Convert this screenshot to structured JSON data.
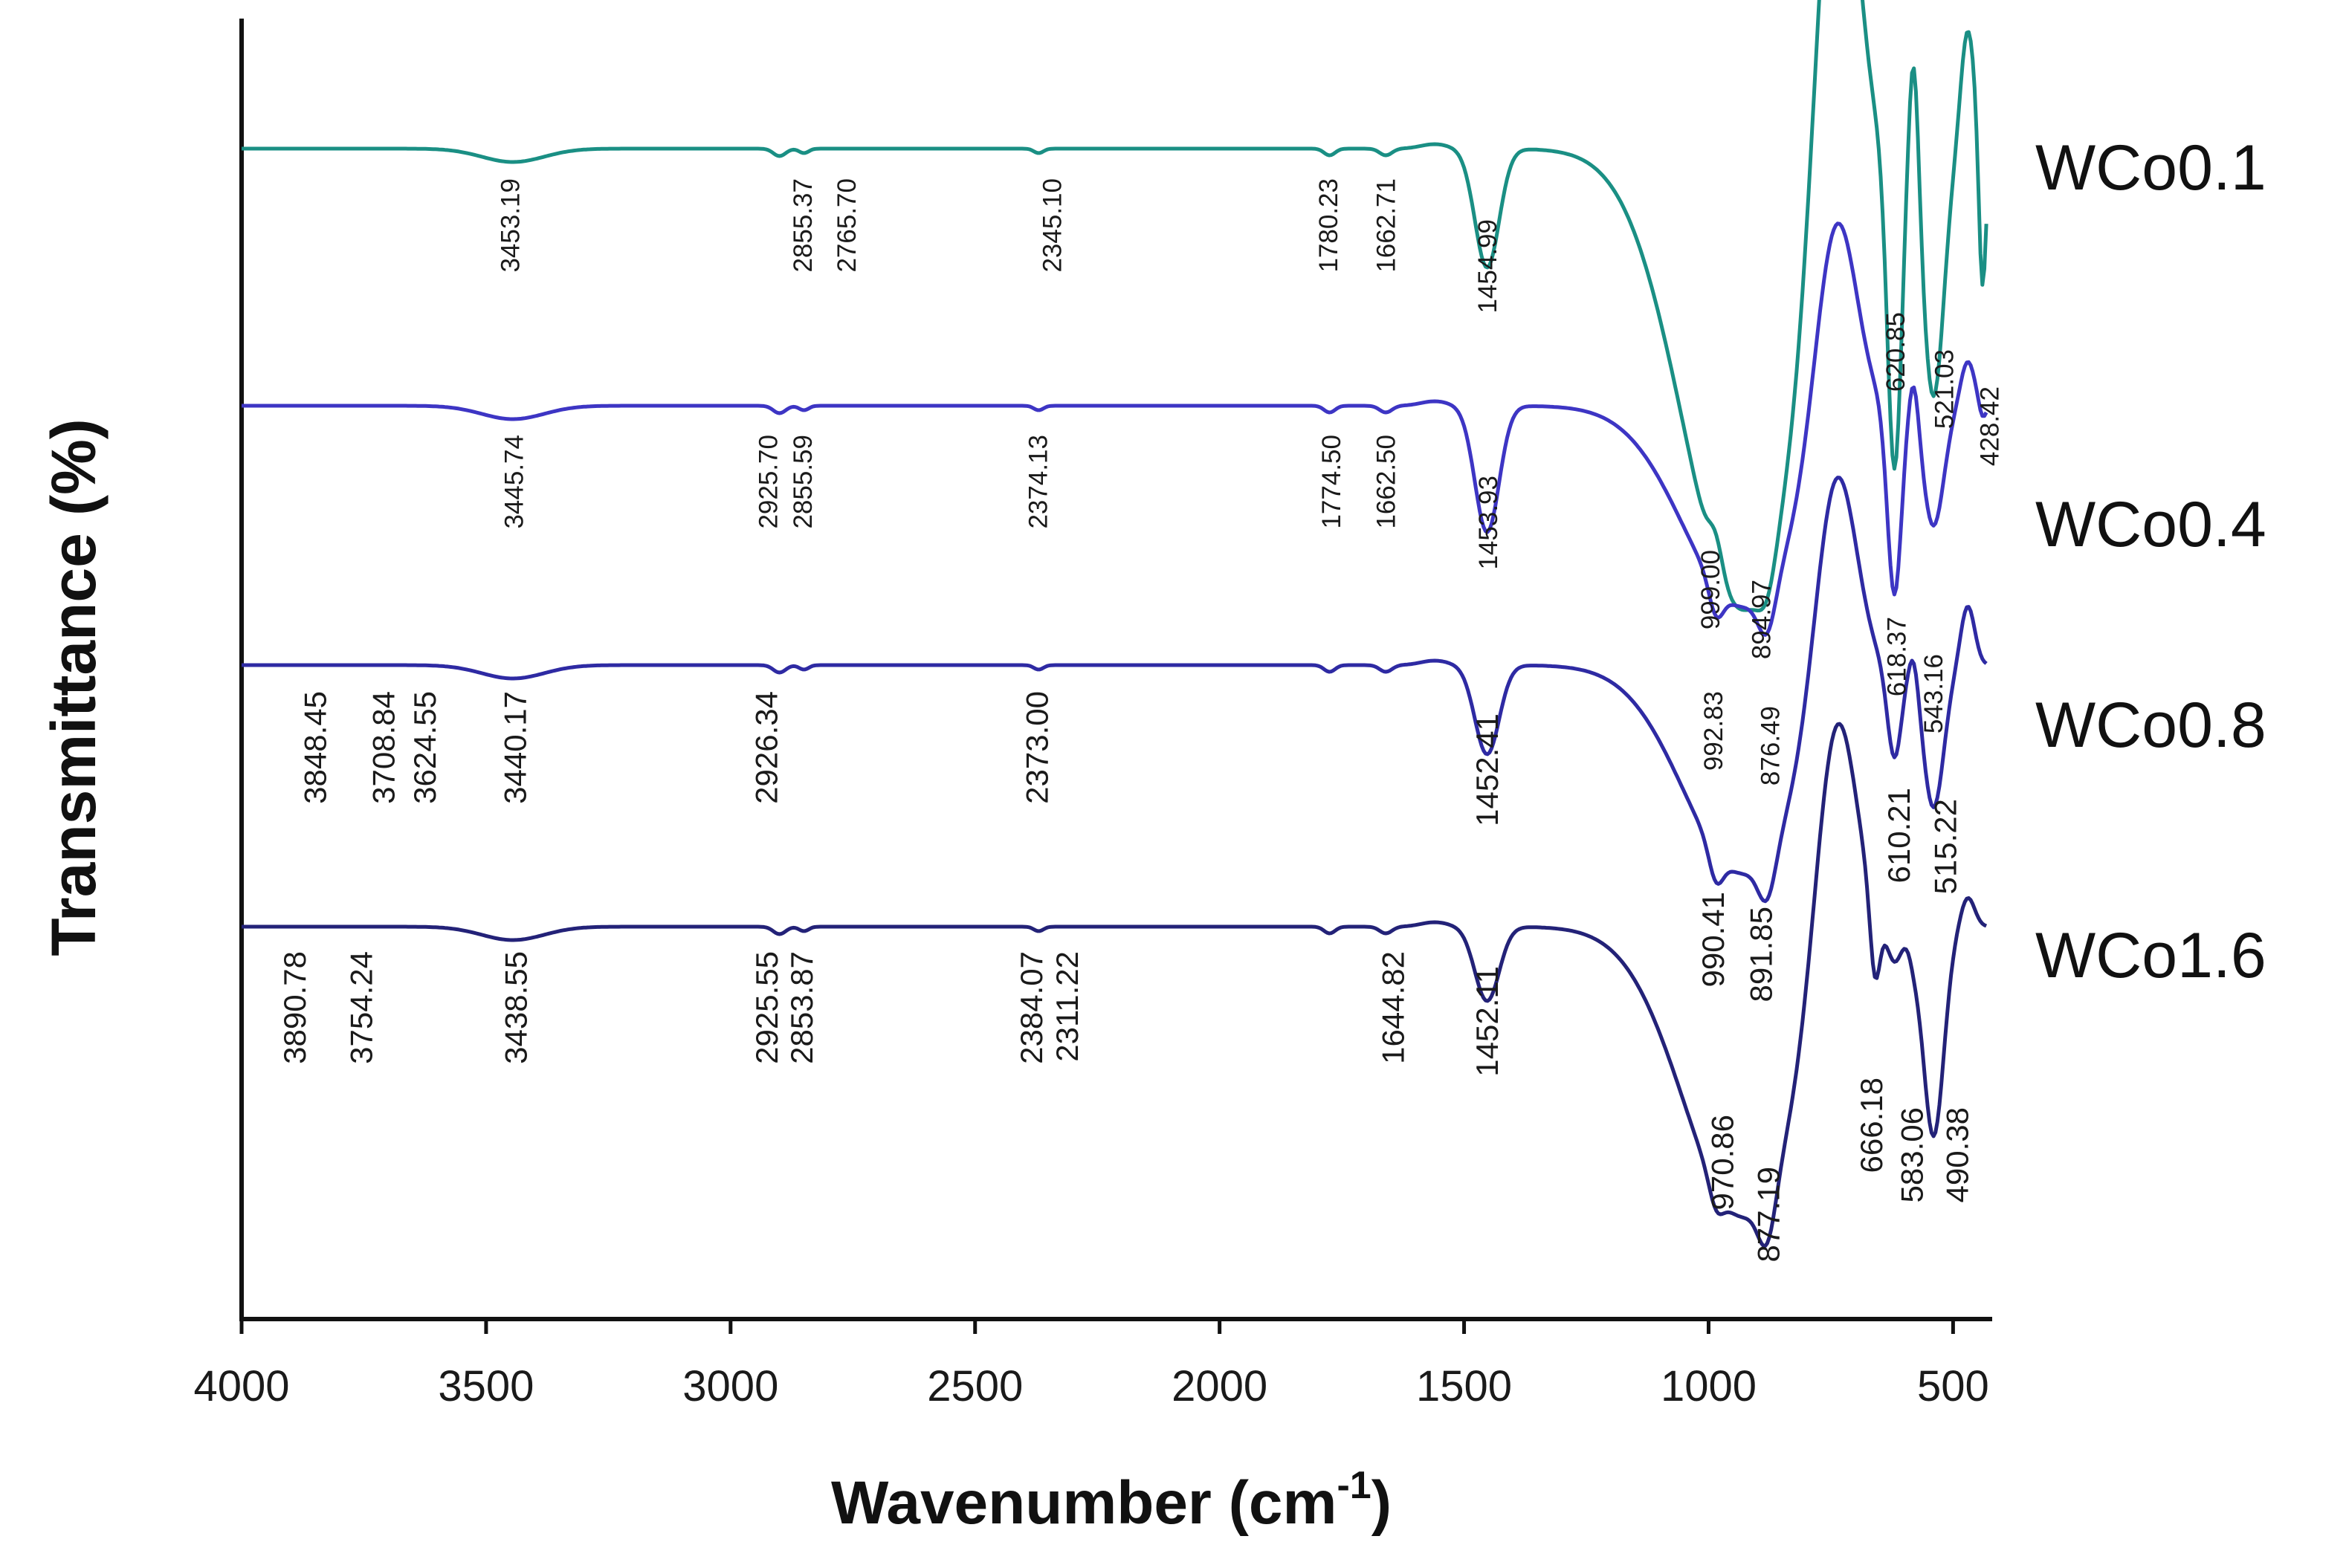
{
  "chart_data": {
    "type": "line",
    "title": "",
    "xlabel": "Wavenumber (cm",
    "xlabel_superscript": "-1",
    "xlabel_close": ")",
    "ylabel": "Transmittance (%)",
    "xlim": [
      4000,
      420
    ],
    "x_ticks": [
      "4000",
      "3500",
      "3000",
      "2500",
      "2000",
      "1500",
      "1000",
      "500"
    ],
    "x_tick_values": [
      4000,
      3500,
      3000,
      2500,
      2000,
      1500,
      1000,
      500
    ],
    "y_ticks_shown": false,
    "series": [
      {
        "name": "WCo0.1",
        "color": "#1a8f84",
        "peaks": [
          {
            "label": "3453.19",
            "x": 3453.19
          },
          {
            "label": "2855.37",
            "x": 2855.37
          },
          {
            "label": "2765.70",
            "x": 2765.7
          },
          {
            "label": "2345.10",
            "x": 2345.1
          },
          {
            "label": "1780.23",
            "x": 1780.23
          },
          {
            "label": "1662.71",
            "x": 1662.71
          },
          {
            "label": "1454.99",
            "x": 1454.99
          },
          {
            "label": "999.00",
            "x": 999.0
          },
          {
            "label": "894.97",
            "x": 894.97
          },
          {
            "label": "620.85",
            "x": 620.85
          },
          {
            "label": "521.03",
            "x": 521.03
          },
          {
            "label": "428.42",
            "x": 428.42
          }
        ]
      },
      {
        "name": "WCo0.4",
        "color": "#3d35c4",
        "peaks": [
          {
            "label": "3445.74",
            "x": 3445.74
          },
          {
            "label": "2925.70",
            "x": 2925.7
          },
          {
            "label": "2855.59",
            "x": 2855.59
          },
          {
            "label": "2374.13",
            "x": 2374.13
          },
          {
            "label": "1774.50",
            "x": 1774.5
          },
          {
            "label": "1662.50",
            "x": 1662.5
          },
          {
            "label": "1453.93",
            "x": 1453.93
          },
          {
            "label": "992.83",
            "x": 992.83
          },
          {
            "label": "876.49",
            "x": 876.49
          },
          {
            "label": "618.37",
            "x": 618.37
          },
          {
            "label": "543.16",
            "x": 543.16
          }
        ]
      },
      {
        "name": "WCo0.8",
        "color": "#2e2aa3",
        "peaks": [
          {
            "label": "3848.45",
            "x": 3848.45
          },
          {
            "label": "3708.84",
            "x": 3708.84
          },
          {
            "label": "3624.55",
            "x": 3624.55
          },
          {
            "label": "3440.17",
            "x": 3440.17
          },
          {
            "label": "2926.34",
            "x": 2926.34
          },
          {
            "label": "2373.00",
            "x": 2373.0
          },
          {
            "label": "1452.41",
            "x": 1452.41
          },
          {
            "label": "990.41",
            "x": 990.41
          },
          {
            "label": "891.85",
            "x": 891.85
          },
          {
            "label": "610.21",
            "x": 610.21
          },
          {
            "label": "515.22",
            "x": 515.22
          }
        ]
      },
      {
        "name": "WCo1.6",
        "color": "#232278",
        "peaks": [
          {
            "label": "3890.78",
            "x": 3890.78
          },
          {
            "label": "3754.24",
            "x": 3754.24
          },
          {
            "label": "3438.55",
            "x": 3438.55
          },
          {
            "label": "2925.55",
            "x": 2925.55
          },
          {
            "label": "2853.87",
            "x": 2853.87
          },
          {
            "label": "2384.07",
            "x": 2384.07
          },
          {
            "label": "2311.22",
            "x": 2311.22
          },
          {
            "label": "1644.82",
            "x": 1644.82
          },
          {
            "label": "1452.11",
            "x": 1452.11
          },
          {
            "label": "970.86",
            "x": 970.86
          },
          {
            "label": "877.19",
            "x": 877.19
          },
          {
            "label": "666.18",
            "x": 666.18
          },
          {
            "label": "583.06",
            "x": 583.06
          },
          {
            "label": "490.38",
            "x": 490.38
          }
        ]
      }
    ]
  }
}
